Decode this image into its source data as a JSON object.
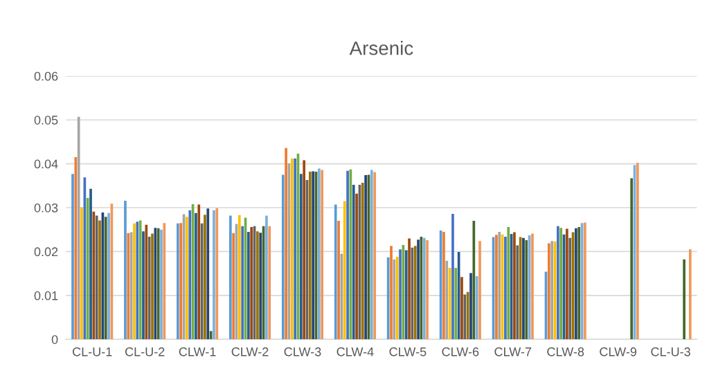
{
  "chart_data": {
    "type": "bar",
    "title": "Arsenic",
    "categories": [
      "CL-U-1",
      "CL-U-2",
      "CLW-1",
      "CLW-2",
      "CLW-3",
      "CLW-4",
      "CLW-5",
      "CLW-6",
      "CLW-7",
      "CLW-8",
      "CLW-9",
      "CL-U-3"
    ],
    "ylim": [
      0,
      0.06
    ],
    "yticks": [
      {
        "value": 0,
        "label": "0"
      },
      {
        "value": 0.01,
        "label": "0.01"
      },
      {
        "value": 0.02,
        "label": "0.02"
      },
      {
        "value": 0.03,
        "label": "0.03"
      },
      {
        "value": 0.04,
        "label": "0.04"
      },
      {
        "value": 0.05,
        "label": "0.05"
      },
      {
        "value": 0.06,
        "label": "0.06"
      }
    ],
    "grid": "y",
    "series": [
      {
        "color": "#5b9bd5",
        "values": [
          0.0377,
          0.0316,
          0.0264,
          0.0282,
          0.0375,
          0.0307,
          0.0187,
          0.0248,
          0.0233,
          0.0154,
          null,
          null
        ]
      },
      {
        "color": "#ed7d31",
        "values": [
          0.0415,
          0.0242,
          0.0265,
          0.0242,
          0.0436,
          0.027,
          0.0213,
          0.0245,
          0.0238,
          0.0219,
          null,
          null
        ]
      },
      {
        "color": "#a5a5a5",
        "values": [
          0.0507,
          0.0244,
          0.0285,
          0.0263,
          0.0401,
          0.0195,
          0.0182,
          0.0179,
          0.0245,
          0.0224,
          null,
          null
        ]
      },
      {
        "color": "#ffc000",
        "values": [
          0.0301,
          0.0264,
          0.0279,
          0.0283,
          0.0412,
          0.0315,
          0.0188,
          0.0163,
          0.0239,
          0.0223,
          null,
          null
        ]
      },
      {
        "color": "#4472c4",
        "values": [
          0.0369,
          0.0268,
          0.0294,
          0.0258,
          0.0412,
          0.0384,
          0.0205,
          0.0286,
          0.0234,
          0.0258,
          null,
          null
        ]
      },
      {
        "color": "#70ad47",
        "values": [
          0.0322,
          0.0271,
          0.0308,
          0.0277,
          0.0423,
          0.0387,
          0.0215,
          0.0163,
          0.0256,
          0.0254,
          null,
          null
        ]
      },
      {
        "color": "#255e91",
        "values": [
          0.0343,
          0.0246,
          0.0288,
          0.0245,
          0.0377,
          0.0352,
          0.0203,
          0.0199,
          0.024,
          0.0239,
          null,
          null
        ]
      },
      {
        "color": "#9e480e",
        "values": [
          0.0291,
          0.0261,
          0.0307,
          0.0256,
          0.0408,
          0.0332,
          0.023,
          0.0142,
          0.0244,
          0.0252,
          null,
          null
        ]
      },
      {
        "color": "#636363",
        "values": [
          0.0282,
          0.0234,
          0.0264,
          0.0258,
          0.0363,
          0.0352,
          0.0209,
          0.0102,
          0.0214,
          0.0231,
          null,
          null
        ]
      },
      {
        "color": "#997300",
        "values": [
          0.0271,
          0.0241,
          0.0284,
          0.0246,
          0.0382,
          0.0357,
          0.0213,
          0.0108,
          0.0233,
          0.0244,
          null,
          null
        ]
      },
      {
        "color": "#264478",
        "values": [
          0.0289,
          0.0254,
          0.0298,
          0.0243,
          0.0383,
          0.0374,
          0.0227,
          0.0151,
          0.0231,
          0.0253,
          null,
          null
        ]
      },
      {
        "color": "#43682b",
        "values": [
          0.0279,
          0.0253,
          0.0019,
          0.0258,
          0.0382,
          0.0375,
          0.0234,
          0.027,
          0.0226,
          0.0256,
          0.0367,
          0.0182
        ]
      },
      {
        "color": "#7cafdd",
        "values": [
          0.0288,
          0.025,
          0.0294,
          0.0282,
          0.0389,
          0.0386,
          0.0231,
          0.0144,
          0.0237,
          0.0265,
          0.0397,
          null
        ]
      },
      {
        "color": "#f1975a",
        "values": [
          0.0309,
          0.0265,
          0.0299,
          0.0258,
          0.0386,
          0.0381,
          0.0226,
          0.0224,
          0.0241,
          0.0266,
          0.0402,
          0.0205
        ]
      }
    ]
  }
}
